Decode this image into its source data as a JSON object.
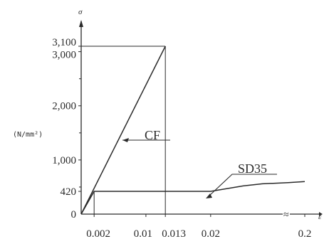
{
  "chart_data": {
    "type": "line",
    "ylabel": "σ",
    "xlabel": "ε",
    "unit": "(N/mm²)",
    "colors": {
      "ink": "#2a2a2a"
    },
    "axis_break": "≈",
    "y_ticks": [
      {
        "value": 0,
        "label": "0"
      },
      {
        "value": 420,
        "label": "420"
      },
      {
        "value": 1000,
        "label": "1,000"
      },
      {
        "value": 2000,
        "label": "2,000"
      },
      {
        "value": 3000,
        "label": "3,000"
      },
      {
        "value": 3100,
        "label": "3,100"
      }
    ],
    "x_ticks": [
      {
        "value": 0.002,
        "label": "0.002"
      },
      {
        "value": 0.01,
        "label": "0.01"
      },
      {
        "value": 0.013,
        "label": "0.013"
      },
      {
        "value": 0.02,
        "label": "0.02"
      },
      {
        "value": 0.2,
        "label": "0.2"
      }
    ],
    "series": [
      {
        "name": "CF",
        "points": [
          [
            0,
            0
          ],
          [
            0.013,
            3100
          ]
        ]
      },
      {
        "name": "SD35",
        "points": [
          [
            0,
            0
          ],
          [
            0.002,
            420
          ],
          [
            0.02,
            420
          ],
          [
            0.025,
            520
          ],
          [
            0.028,
            560
          ],
          [
            0.032,
            580
          ],
          [
            0.2,
            600
          ]
        ]
      }
    ],
    "reference_lines": [
      {
        "type": "vertical",
        "x": 0.013,
        "y_to": 3100
      },
      {
        "type": "horizontal",
        "y": 3100,
        "x_to": 0.013
      },
      {
        "type": "vertical",
        "x": 0.002,
        "y_to": 420
      }
    ]
  }
}
